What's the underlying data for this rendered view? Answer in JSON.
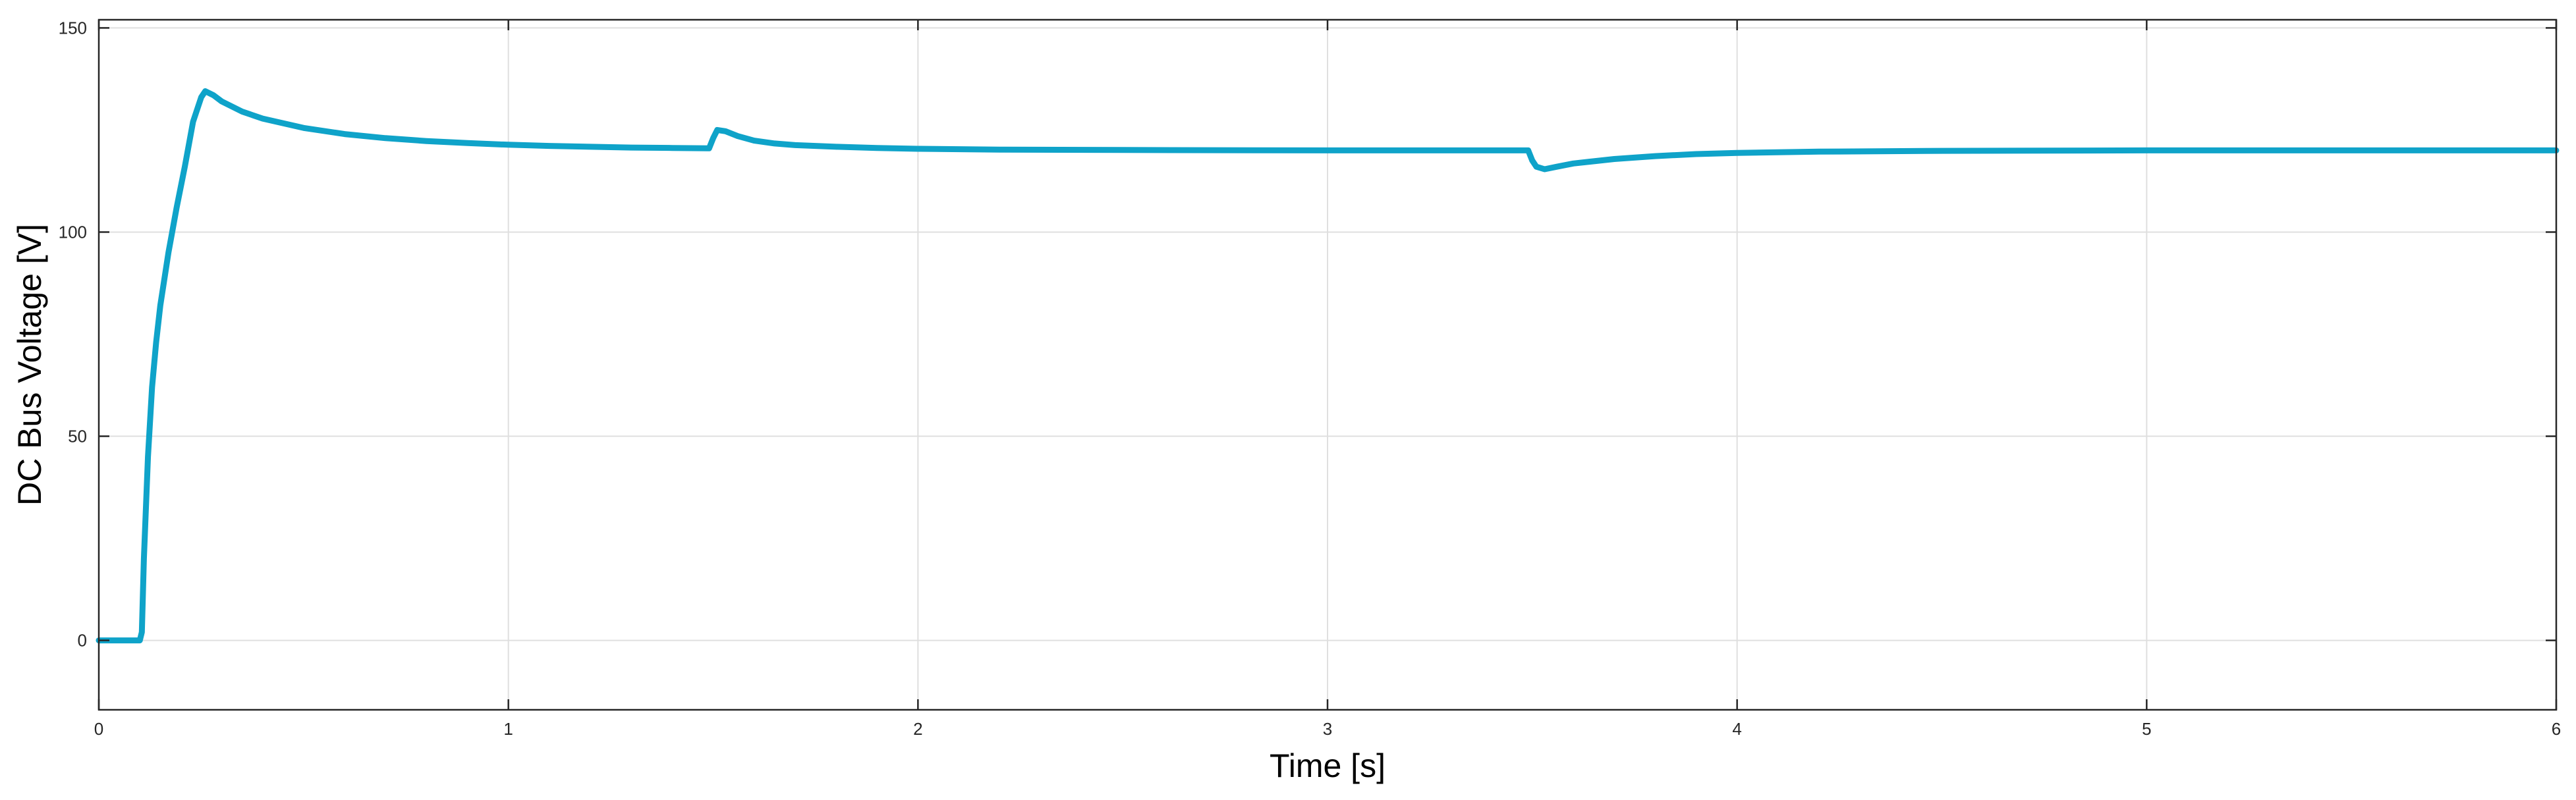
{
  "chart_data": {
    "type": "line",
    "title": "",
    "xlabel": "Time [s]",
    "ylabel": "DC Bus Voltage [V]",
    "xlim": [
      0,
      6
    ],
    "ylim": [
      -17,
      152
    ],
    "xticks": [
      "0",
      "1",
      "2",
      "3",
      "4",
      "5",
      "6"
    ],
    "yticks": [
      "0",
      "50",
      "100",
      "150"
    ],
    "grid": true,
    "legend": "none",
    "series": [
      {
        "color": "#0fa3c9",
        "x": [
          0,
          0.1,
          0.105,
          0.11,
          0.12,
          0.13,
          0.14,
          0.15,
          0.17,
          0.19,
          0.21,
          0.23,
          0.25,
          0.26,
          0.28,
          0.3,
          0.35,
          0.4,
          0.5,
          0.6,
          0.7,
          0.8,
          0.9,
          1.0,
          1.1,
          1.2,
          1.3,
          1.4,
          1.49,
          1.5,
          1.51,
          1.53,
          1.56,
          1.6,
          1.65,
          1.7,
          1.8,
          1.9,
          2.0,
          2.2,
          2.5,
          3.0,
          3.49,
          3.5,
          3.51,
          3.53,
          3.56,
          3.6,
          3.7,
          3.8,
          3.9,
          4.0,
          4.2,
          4.5,
          5.0,
          6.0
        ],
        "y": [
          0,
          0,
          2,
          20,
          45,
          62,
          73,
          82,
          95,
          106,
          116,
          127,
          133,
          134.5,
          133.5,
          132,
          129.5,
          127.8,
          125.5,
          124,
          123,
          122.3,
          121.8,
          121.4,
          121.1,
          120.9,
          120.7,
          120.6,
          120.5,
          123,
          125,
          124.7,
          123.5,
          122.4,
          121.7,
          121.3,
          120.9,
          120.6,
          120.4,
          120.2,
          120.1,
          120,
          120,
          117.5,
          116,
          115.4,
          116,
          116.8,
          117.9,
          118.6,
          119.1,
          119.4,
          119.7,
          119.9,
          120,
          120
        ]
      }
    ]
  }
}
